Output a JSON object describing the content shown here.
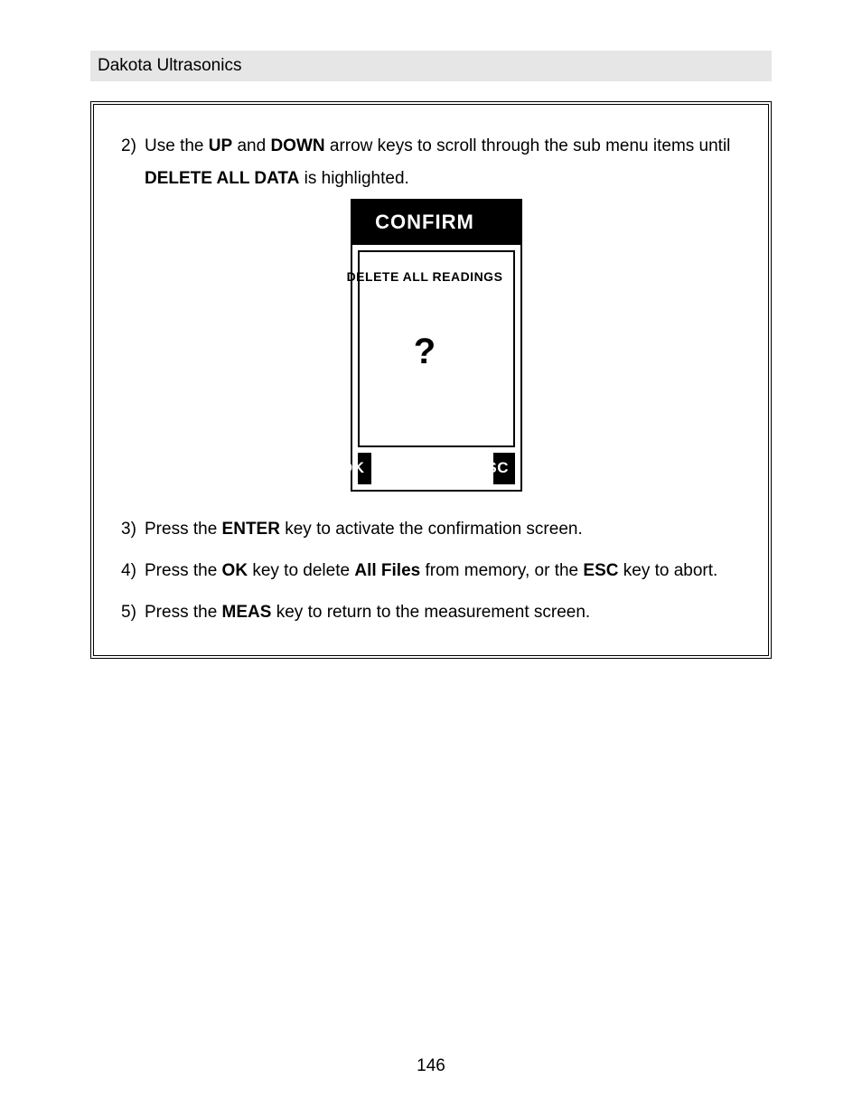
{
  "header": {
    "title": "Dakota Ultrasonics"
  },
  "steps": {
    "s2": {
      "num": "2)",
      "pre": "Use the ",
      "k1": "UP",
      "mid1": " and ",
      "k2": "DOWN",
      "mid2": " arrow keys to scroll through the sub menu items until ",
      "k3": "DELETE ALL DATA",
      "post": " is highlighted."
    },
    "s3": {
      "num": "3)",
      "pre": "Press the ",
      "k1": "ENTER",
      "post": " key to activate the confirmation screen."
    },
    "s4": {
      "num": "4)",
      "pre": "Press the ",
      "k1": "OK",
      "mid1": " key to delete ",
      "k2": "All Files",
      "mid2": " from memory, or the ",
      "k3": "ESC",
      "post": " key to abort."
    },
    "s5": {
      "num": "5)",
      "pre": "Press the ",
      "k1": "MEAS",
      "post": " key to return to the measurement screen."
    }
  },
  "device_screen": {
    "title": "CONFIRM",
    "subtitle": "DELETE ALL READINGS",
    "qmark": "?",
    "ok": "OK",
    "esc": "ESC",
    "colors": {
      "fg": "#000000",
      "bg": "#ffffff"
    }
  },
  "page_number": "146"
}
